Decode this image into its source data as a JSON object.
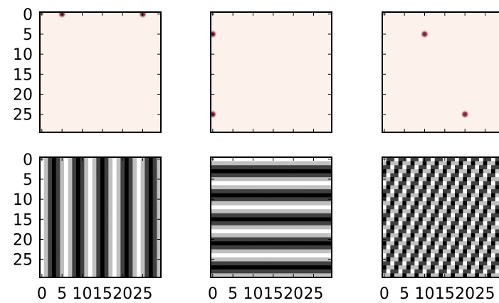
{
  "figure": {
    "background": "#ffffff",
    "spine_color": "#000000",
    "tick_labels": [
      "0",
      "5",
      "10",
      "15",
      "20",
      "25"
    ]
  },
  "chart_data": [
    {
      "type": "heatmap",
      "panel": "top-left",
      "colormap": "Reds",
      "grid_size": 30,
      "background_color": "#fdf1ec",
      "peak_color": "#7a1a2a",
      "points": [
        {
          "x": 5,
          "y": 0
        },
        {
          "x": 25,
          "y": 0
        }
      ],
      "xlim": [
        0,
        29
      ],
      "ylim": [
        0,
        29
      ],
      "y_tick_labels": [
        "0",
        "5",
        "10",
        "15",
        "20",
        "25"
      ],
      "x_tick_labels": []
    },
    {
      "type": "heatmap",
      "panel": "top-middle",
      "colormap": "Reds",
      "grid_size": 30,
      "background_color": "#fdf1ec",
      "peak_color": "#7a1a2a",
      "points": [
        {
          "x": 0,
          "y": 5
        },
        {
          "x": 0,
          "y": 25
        }
      ],
      "xlim": [
        0,
        29
      ],
      "ylim": [
        0,
        29
      ],
      "y_tick_labels": [],
      "x_tick_labels": []
    },
    {
      "type": "heatmap",
      "panel": "top-right",
      "colormap": "Reds",
      "grid_size": 30,
      "background_color": "#fdf1ec",
      "peak_color": "#7a1a2a",
      "points": [
        {
          "x": 10,
          "y": 5
        },
        {
          "x": 20,
          "y": 25
        }
      ],
      "xlim": [
        0,
        29
      ],
      "ylim": [
        0,
        29
      ],
      "y_tick_labels": [],
      "x_tick_labels": []
    },
    {
      "type": "heatmap",
      "panel": "bottom-left",
      "colormap": "gray",
      "grid_size": 30,
      "pattern": "cosine",
      "frequency": {
        "kx": 5,
        "ky": 0
      },
      "xlim": [
        0,
        29
      ],
      "ylim": [
        0,
        29
      ],
      "y_tick_labels": [
        "0",
        "5",
        "10",
        "15",
        "20",
        "25"
      ],
      "x_tick_labels": [
        "0",
        "5",
        "10",
        "15",
        "20",
        "25"
      ]
    },
    {
      "type": "heatmap",
      "panel": "bottom-middle",
      "colormap": "gray",
      "grid_size": 30,
      "pattern": "cosine",
      "frequency": {
        "kx": 0,
        "ky": 5
      },
      "xlim": [
        0,
        29
      ],
      "ylim": [
        0,
        29
      ],
      "y_tick_labels": [],
      "x_tick_labels": [
        "0",
        "5",
        "10",
        "15",
        "20",
        "25"
      ]
    },
    {
      "type": "heatmap",
      "panel": "bottom-right",
      "colormap": "gray",
      "grid_size": 30,
      "pattern": "cosine",
      "frequency": {
        "kx": 10,
        "ky": 5
      },
      "xlim": [
        0,
        29
      ],
      "ylim": [
        0,
        29
      ],
      "y_tick_labels": [],
      "x_tick_labels": [
        "0",
        "5",
        "10",
        "15",
        "20",
        "25"
      ]
    }
  ]
}
